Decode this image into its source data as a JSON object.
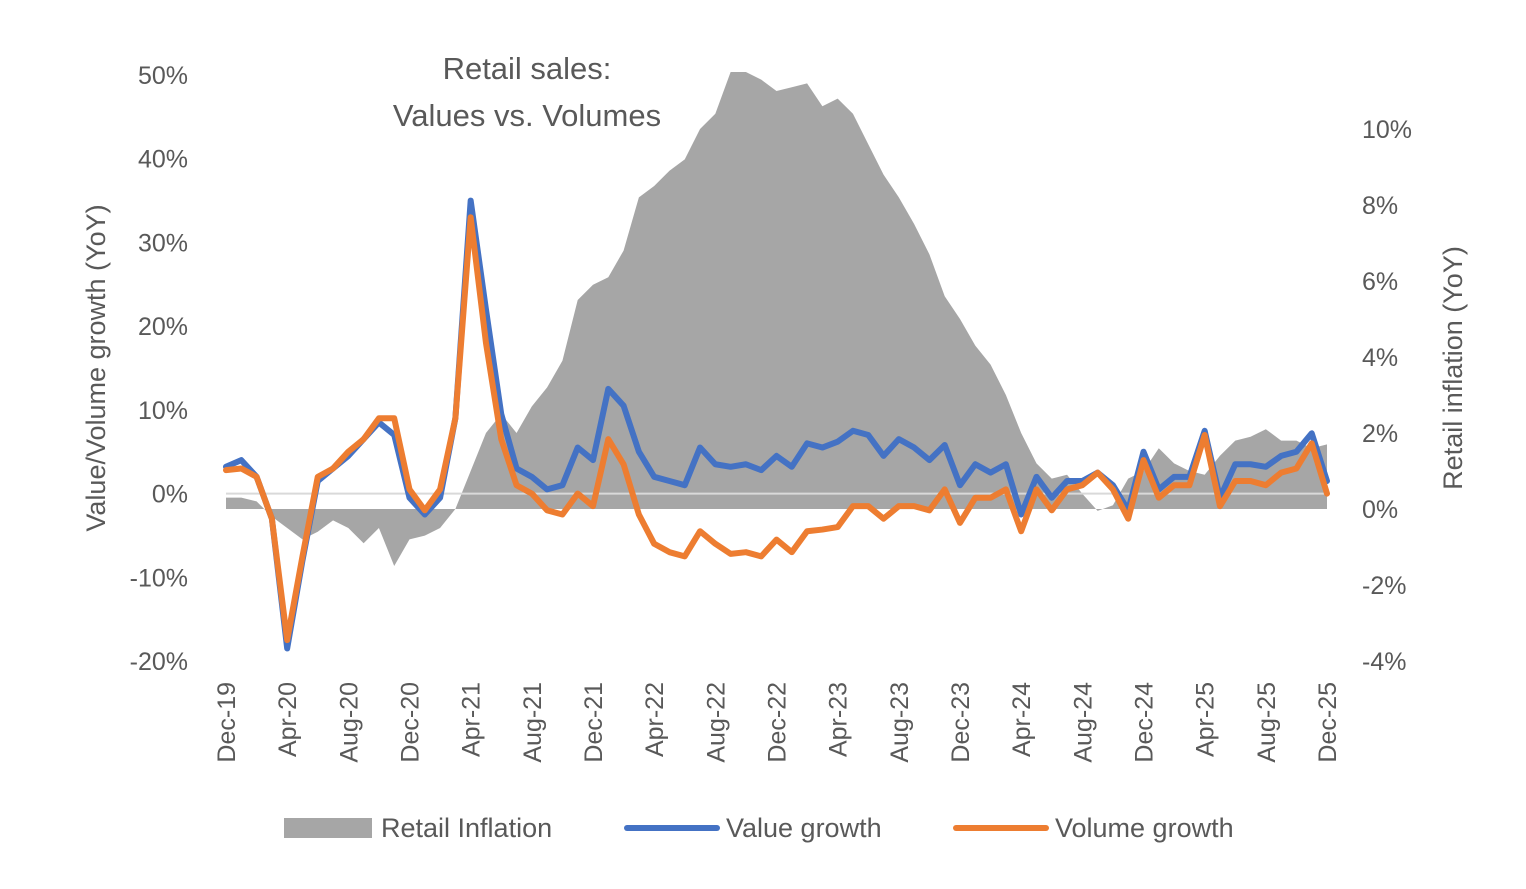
{
  "chart_data": {
    "type": "line",
    "title": [
      "Retail sales:",
      "Values vs. Volumes"
    ],
    "ylabel_left": "Value/Volume  growth (YoY)",
    "ylabel_right": "Retail inflation (YoY)",
    "left_ticks": [
      "-20%",
      "-10%",
      "0%",
      "10%",
      "20%",
      "30%",
      "40%",
      "50%"
    ],
    "right_ticks": [
      "-4%",
      "-2%",
      "0%",
      "2%",
      "4%",
      "6%",
      "8%",
      "10%"
    ],
    "ylim_left": [
      -20,
      50
    ],
    "ylim_right": [
      -4,
      11
    ],
    "x_tick_labels": [
      "Dec-19",
      "Apr-20",
      "Aug-20",
      "Dec-20",
      "Apr-21",
      "Aug-21",
      "Dec-21",
      "Apr-22",
      "Aug-22",
      "Dec-22",
      "Apr-23",
      "Aug-23",
      "Dec-23",
      "Apr-24",
      "Aug-24",
      "Dec-24",
      "Apr-25",
      "Aug-25",
      "Dec-25"
    ],
    "n_points": 73,
    "series": [
      {
        "name": "Retail Inflation",
        "kind": "area",
        "axis": "right",
        "color": "#a6a6a6",
        "values": [
          0.3,
          0.3,
          0.2,
          -0.2,
          -0.5,
          -0.8,
          -0.6,
          -0.3,
          -0.5,
          -0.9,
          -0.5,
          -1.5,
          -0.8,
          -0.7,
          -0.5,
          0.0,
          1.0,
          2.0,
          2.5,
          2.0,
          2.7,
          3.2,
          3.9,
          5.5,
          5.9,
          6.1,
          6.8,
          8.2,
          8.5,
          8.9,
          9.2,
          10.0,
          10.4,
          11.5,
          11.5,
          11.3,
          11.0,
          11.1,
          11.2,
          10.6,
          10.8,
          10.4,
          9.6,
          8.8,
          8.2,
          7.5,
          6.7,
          5.6,
          5.0,
          4.3,
          3.8,
          3.0,
          2.0,
          1.2,
          0.8,
          0.9,
          0.4,
          -0.05,
          0.1,
          0.8,
          1.0,
          1.6,
          1.2,
          1.0,
          0.9,
          1.4,
          1.8,
          1.9,
          2.1,
          1.8,
          1.8,
          1.6,
          1.7
        ]
      },
      {
        "name": "Value growth",
        "kind": "line",
        "axis": "left",
        "color": "#4472c4",
        "values": [
          3.2,
          4.0,
          2.0,
          -3.0,
          -18.5,
          -8.0,
          1.5,
          3.0,
          4.5,
          6.5,
          8.5,
          7.0,
          -0.5,
          -2.5,
          -0.5,
          9.0,
          35.0,
          22.0,
          9.5,
          3.0,
          2.0,
          0.5,
          1.0,
          5.5,
          4.0,
          12.5,
          10.5,
          5.0,
          2.0,
          1.5,
          1.0,
          5.5,
          3.5,
          3.2,
          3.5,
          2.8,
          4.5,
          3.2,
          6.0,
          5.5,
          6.2,
          7.5,
          7.0,
          4.5,
          6.5,
          5.5,
          4.0,
          5.8,
          1.0,
          3.5,
          2.5,
          3.5,
          -2.5,
          2.0,
          -0.5,
          1.5,
          1.5,
          2.5,
          1.0,
          -2.0,
          5.0,
          0.5,
          2.0,
          2.0,
          7.5,
          -0.5,
          3.5,
          3.5,
          3.2,
          4.5,
          5.0,
          7.2,
          1.5
        ]
      },
      {
        "name": "Volume growth",
        "kind": "line",
        "axis": "left",
        "color": "#ed7d31",
        "values": [
          2.8,
          3.0,
          2.0,
          -3.0,
          -17.5,
          -7.5,
          2.0,
          3.0,
          5.0,
          6.5,
          9.0,
          9.0,
          0.5,
          -2.0,
          0.5,
          9.0,
          33.0,
          18.0,
          6.5,
          1.0,
          0.0,
          -2.0,
          -2.5,
          0.0,
          -1.5,
          6.5,
          3.5,
          -2.5,
          -6.0,
          -7.0,
          -7.5,
          -4.5,
          -6.0,
          -7.2,
          -7.0,
          -7.5,
          -5.5,
          -7.0,
          -4.5,
          -4.3,
          -4.0,
          -1.5,
          -1.5,
          -3.0,
          -1.5,
          -1.5,
          -2.0,
          0.5,
          -3.5,
          -0.5,
          -0.5,
          0.5,
          -4.5,
          0.5,
          -2.0,
          0.5,
          1.0,
          2.5,
          0.5,
          -3.0,
          4.0,
          -0.5,
          1.0,
          1.0,
          7.0,
          -1.5,
          1.5,
          1.5,
          1.0,
          2.5,
          3.0,
          6.0,
          0.0
        ]
      }
    ],
    "legend_position": "bottom"
  }
}
